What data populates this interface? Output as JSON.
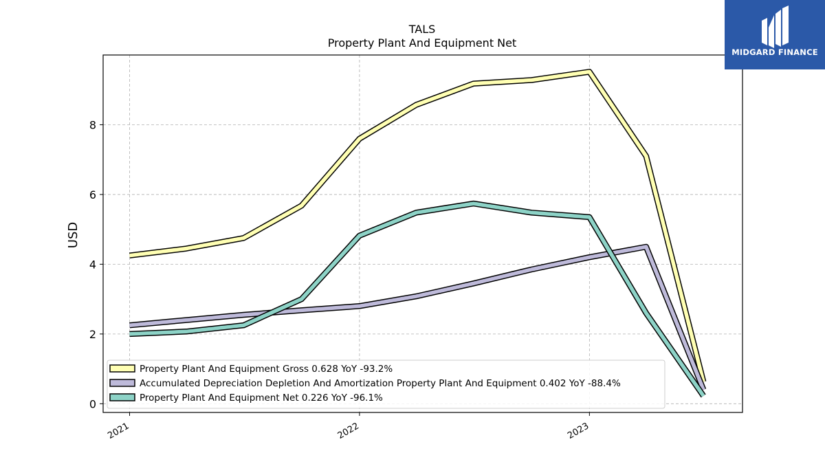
{
  "chart_data": {
    "type": "line",
    "title": "TALS",
    "subtitle": "Property Plant And Equipment Net",
    "xlabel": "",
    "ylabel": "USD",
    "x": [
      "2021-01-01",
      "2021-04-01",
      "2021-07-01",
      "2021-10-01",
      "2022-01-01",
      "2022-04-01",
      "2022-07-01",
      "2022-10-01",
      "2023-01-01",
      "2023-04-01",
      "2023-07-01"
    ],
    "xticks": [
      "2021",
      "2022",
      "2023"
    ],
    "yticks": [
      0,
      2,
      4,
      6,
      8
    ],
    "ylim": [
      -0.25,
      10.0
    ],
    "grid": true,
    "legend_position": "lower-left",
    "series": [
      {
        "name": "Property Plant And Equipment Gross",
        "legend": "Property Plant And Equipment Gross  0.628 YoY -93.2%",
        "color": "#ffffb3",
        "values": [
          4.25,
          4.45,
          4.75,
          5.68,
          7.6,
          8.57,
          9.18,
          9.28,
          9.52,
          7.1,
          0.628
        ]
      },
      {
        "name": "Accumulated Depreciation Depletion And Amortization Property Plant And Equipment",
        "legend": "Accumulated Depreciation Depletion And Amortization Property Plant And Equipment  0.402 YoY -88.4%",
        "color": "#bebada",
        "values": [
          2.25,
          2.4,
          2.55,
          2.68,
          2.8,
          3.08,
          3.45,
          3.85,
          4.2,
          4.5,
          0.402
        ]
      },
      {
        "name": "Property Plant And Equipment Net",
        "legend": "Property Plant And Equipment Net  0.226 YoY -96.1%",
        "color": "#8dd3c7",
        "values": [
          2.0,
          2.07,
          2.25,
          3.0,
          4.82,
          5.48,
          5.74,
          5.48,
          5.35,
          2.6,
          0.226
        ]
      }
    ]
  },
  "logo": {
    "text": "MIDGARD FINANCE",
    "color": "#2b59a8"
  }
}
